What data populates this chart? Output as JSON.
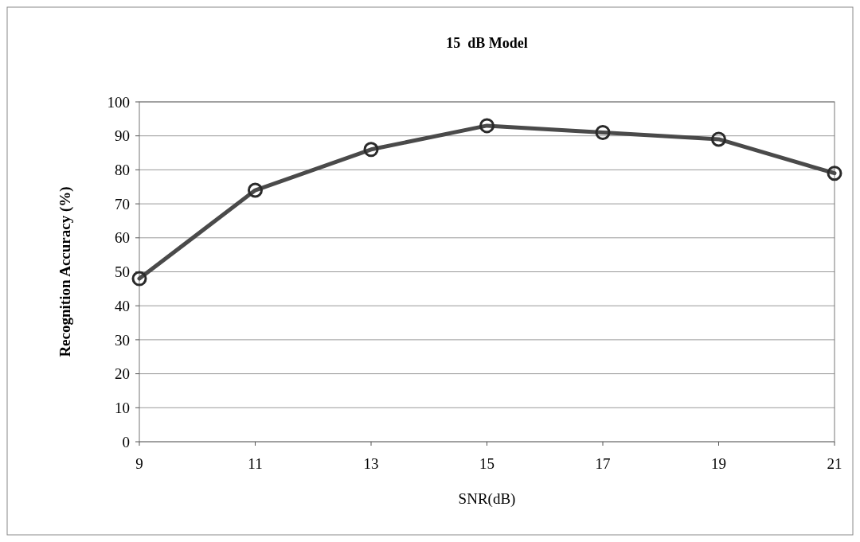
{
  "chart_data": {
    "type": "line",
    "title": "15  dB Model",
    "xlabel": "SNR(dB)",
    "ylabel": "Recognition Accuracy (%)",
    "x": [
      9,
      11,
      13,
      15,
      17,
      19,
      21
    ],
    "series": [
      {
        "color": "#4a4a4a",
        "values": [
          48,
          74,
          86,
          93,
          91,
          89,
          79
        ]
      }
    ],
    "xlim": [
      9,
      21
    ],
    "xticks": [
      9,
      11,
      13,
      15,
      17,
      19,
      21
    ],
    "ylim": [
      0,
      100
    ],
    "yticks": [
      0,
      10,
      20,
      30,
      40,
      50,
      60,
      70,
      80,
      90,
      100
    ],
    "grid": "y",
    "marker": "circle",
    "line_style": "solid"
  }
}
